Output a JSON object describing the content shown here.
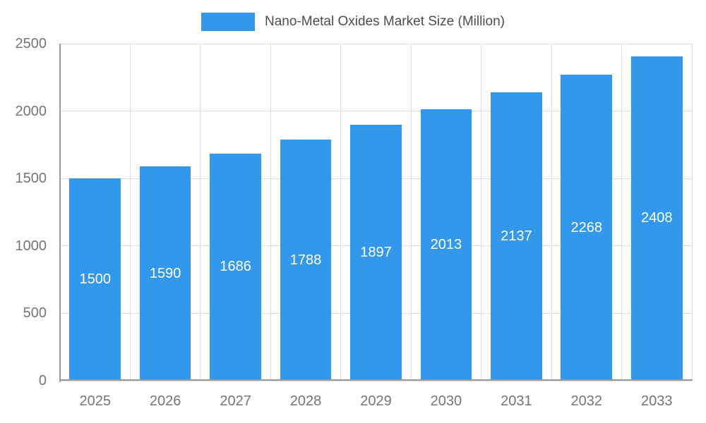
{
  "chart_data": {
    "type": "bar",
    "title": "Nano-Metal Oxides Market Size (Million)",
    "categories": [
      "2025",
      "2026",
      "2027",
      "2028",
      "2029",
      "2030",
      "2031",
      "2032",
      "2033"
    ],
    "values": [
      1500,
      1590,
      1686,
      1788,
      1897,
      2013,
      2137,
      2268,
      2408
    ],
    "xlabel": "",
    "ylabel": "",
    "ylim": [
      0,
      2500
    ],
    "yticks": [
      0,
      500,
      1000,
      1500,
      2000,
      2500
    ],
    "grid": true,
    "legend_position": "top-center",
    "value_labels": "inside-center",
    "bar_color": "#3398EC",
    "value_label_color": "#FFFFFF",
    "legend_text_color": "#4D4D4D",
    "axis_label_color": "#757575",
    "gridline_color": "#DDDDDD",
    "axis_line_color": "#999999",
    "background_color": "#FFFFFF"
  }
}
